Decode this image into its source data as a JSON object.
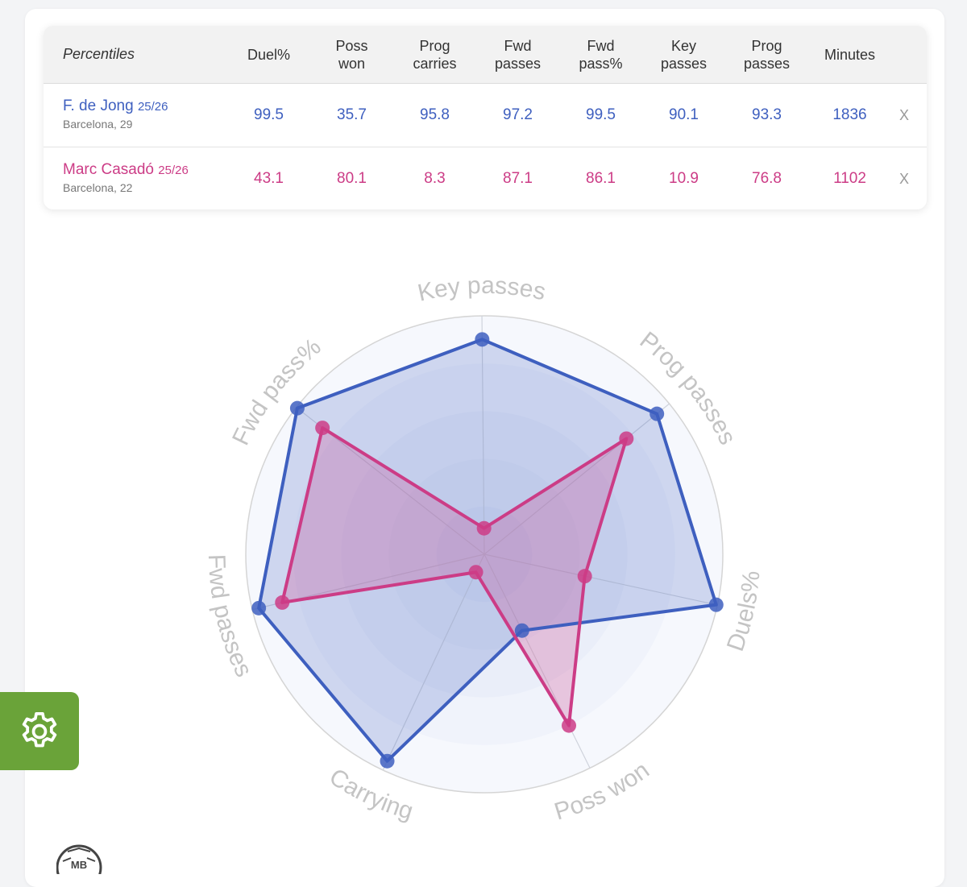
{
  "table": {
    "header_label": "Percentiles",
    "columns": [
      {
        "line1": "Duel%",
        "line2": ""
      },
      {
        "line1": "Poss",
        "line2": "won"
      },
      {
        "line1": "Prog",
        "line2": "carries"
      },
      {
        "line1": "Fwd",
        "line2": "passes"
      },
      {
        "line1": "Fwd",
        "line2": "pass%"
      },
      {
        "line1": "Key",
        "line2": "passes"
      },
      {
        "line1": "Prog",
        "line2": "passes"
      },
      {
        "line1": "Minutes",
        "line2": ""
      }
    ],
    "remove_label": "X",
    "players": [
      {
        "name": "F. de Jong",
        "season": "25/26",
        "club_age": "Barcelona, 29",
        "color": "#3e5fbf",
        "values": [
          "99.5",
          "35.7",
          "95.8",
          "97.2",
          "99.5",
          "90.1",
          "93.3",
          "1836"
        ]
      },
      {
        "name": "Marc Casadó",
        "season": "25/26",
        "club_age": "Barcelona, 22",
        "color": "#cc3c86",
        "values": [
          "43.1",
          "80.1",
          "8.3",
          "87.1",
          "86.1",
          "10.9",
          "76.8",
          "1102"
        ]
      }
    ]
  },
  "chart_data": {
    "type": "radar",
    "axes": [
      "Key passes",
      "Prog passes",
      "Duels%",
      "Poss won",
      "Carrying",
      "Fwd passes",
      "Fwd pass%"
    ],
    "range": [
      0,
      100
    ],
    "series": [
      {
        "name": "F. de Jong",
        "color": "#3e5fbf",
        "values": [
          90.1,
          93.3,
          99.5,
          35.7,
          95.8,
          97.2,
          99.5
        ]
      },
      {
        "name": "Marc Casadó",
        "color": "#cc3c86",
        "values": [
          10.9,
          76.8,
          43.1,
          80.1,
          8.3,
          87.1,
          86.1
        ]
      }
    ]
  },
  "settings": {
    "icon": "gear-icon"
  },
  "logo": {
    "icon": "logo-icon",
    "text": "MB"
  }
}
